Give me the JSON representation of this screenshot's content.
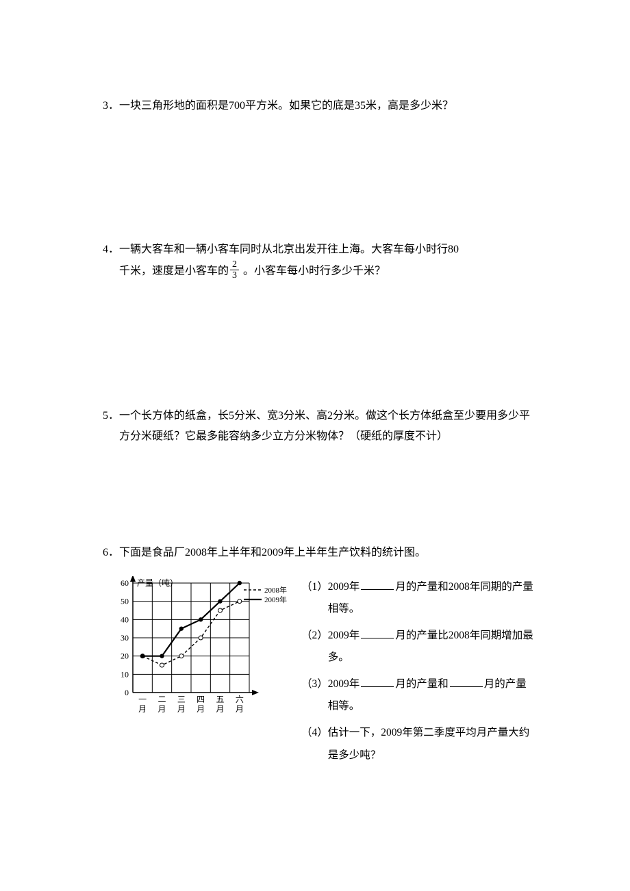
{
  "questions": {
    "q3": {
      "number": "3．",
      "text": "一块三角形地的面积是700平方米。如果它的底是35米，高是多少米？"
    },
    "q4": {
      "number": "4．",
      "line1_pre": "一辆大客车和一辆小客车同时从北京出发开往上海。大客车每小时行80",
      "line2_pre": "千米，速度是小客车的",
      "frac_num": "2",
      "frac_den": "3",
      "line2_post": " 。小客车每小时行多少千米？"
    },
    "q5": {
      "number": "5．",
      "text": "一个长方体的纸盒，长5分米、宽3分米、高2分米。做这个长方体纸盒至少要用多少平方分米硬纸？它最多能容纳多少立方分米物体？（硬纸的厚度不计）"
    },
    "q6": {
      "number": "6．",
      "intro": "下面是食品厂2008年上半年和2009年上半年生产饮料的统计图。",
      "sub1_a": "（1）",
      "sub1_b": "2009年",
      "sub1_c": "月的产量和2008年同期的产量相等。",
      "sub2_a": "（2）",
      "sub2_b": "2009年",
      "sub2_c": "月的产量比2008年同期增加最多。",
      "sub3_a": "（3）",
      "sub3_b": "2009年",
      "sub3_c": "月的产量和",
      "sub3_d": "月的产量相等。",
      "sub4_a": "（4）",
      "sub4_b": " 估计一下，2009年第二季度平均月产量大约是多少吨？"
    }
  },
  "chart": {
    "type": "line",
    "y_axis_label": "产量（吨）",
    "y_ticks": [
      0,
      10,
      20,
      30,
      40,
      50,
      60
    ],
    "ylim": [
      0,
      60
    ],
    "x_categories": [
      "一月",
      "二月",
      "三月",
      "四月",
      "五月",
      "六月"
    ],
    "legend_2008": "2008年",
    "legend_2009": "2009年",
    "series_2008": {
      "values": [
        20,
        15,
        20,
        30,
        45,
        50
      ],
      "style": "dashed",
      "color": "#000000",
      "marker": "circle-open"
    },
    "series_2009": {
      "values": [
        20,
        20,
        35,
        40,
        50,
        60
      ],
      "style": "solid",
      "color": "#000000",
      "marker": "circle-filled",
      "line_width": 2.2
    },
    "grid_color": "#000000",
    "background_color": "#ffffff",
    "axis_font_size": 12,
    "tick_font_size": 12
  }
}
